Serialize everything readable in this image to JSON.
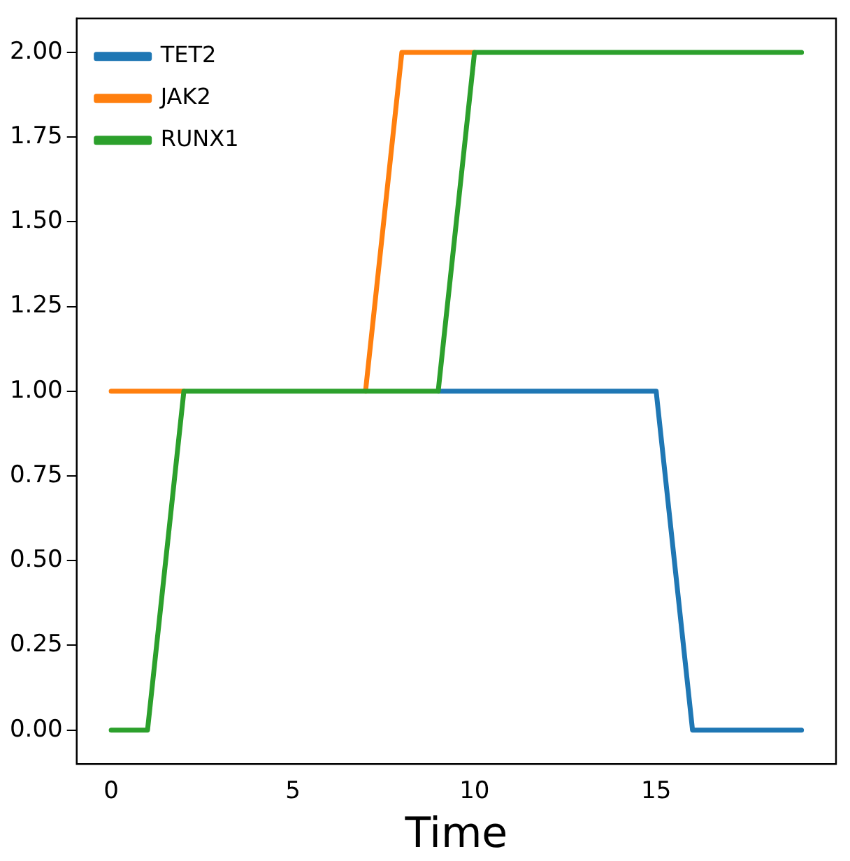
{
  "chart_data": {
    "type": "line",
    "xlabel": "Time",
    "x": [
      0,
      1,
      2,
      3,
      4,
      5,
      6,
      7,
      8,
      9,
      10,
      11,
      12,
      13,
      14,
      15,
      16,
      17,
      18,
      19
    ],
    "series": [
      {
        "name": "TET2",
        "color": "#1f77b4",
        "values": [
          null,
          null,
          null,
          null,
          null,
          null,
          null,
          null,
          null,
          1,
          1,
          1,
          1,
          1,
          1,
          1,
          0,
          0,
          0,
          0
        ]
      },
      {
        "name": "JAK2",
        "color": "#ff7f0e",
        "values": [
          1,
          1,
          1,
          null,
          null,
          null,
          null,
          1,
          2,
          2,
          2,
          null,
          null,
          null,
          null,
          null,
          null,
          null,
          null,
          null
        ]
      },
      {
        "name": "RUNX1",
        "color": "#2ca02c",
        "values": [
          0,
          0,
          1,
          1,
          1,
          1,
          1,
          1,
          1,
          1,
          2,
          2,
          2,
          2,
          2,
          2,
          2,
          2,
          2,
          2
        ]
      }
    ],
    "xlim": [
      -0.95,
      19.95
    ],
    "xticks": [
      0,
      5,
      10,
      15
    ],
    "ylim": [
      -0.1,
      2.1
    ],
    "yticks": [
      {
        "value": 0,
        "label": "0.00"
      },
      {
        "value": 0.25,
        "label": "0.25"
      },
      {
        "value": 0.5,
        "label": "0.50"
      },
      {
        "value": 0.75,
        "label": "0.75"
      },
      {
        "value": 1,
        "label": "1.00"
      },
      {
        "value": 1.25,
        "label": "1.25"
      },
      {
        "value": 1.5,
        "label": "1.50"
      },
      {
        "value": 1.75,
        "label": "1.75"
      },
      {
        "value": 2,
        "label": "2.00"
      }
    ],
    "grid": false,
    "legend": "top left",
    "marker": "none",
    "line_style": "solid"
  }
}
